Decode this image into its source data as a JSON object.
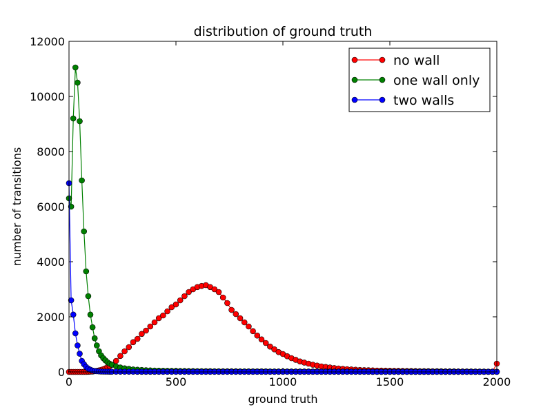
{
  "chart_data": {
    "type": "line",
    "title": "distribution of ground truth",
    "xlabel": "ground truth",
    "ylabel": "number of transitions",
    "x": [
      0,
      10,
      20,
      30,
      40,
      50,
      60,
      70,
      80,
      90,
      100,
      110,
      120,
      130,
      140,
      150,
      160,
      170,
      180,
      190,
      200,
      220,
      240,
      260,
      280,
      300,
      320,
      340,
      360,
      380,
      400,
      420,
      440,
      460,
      480,
      500,
      520,
      540,
      560,
      580,
      600,
      620,
      640,
      660,
      680,
      700,
      720,
      740,
      760,
      780,
      800,
      820,
      840,
      860,
      880,
      900,
      920,
      940,
      960,
      980,
      1000,
      1020,
      1040,
      1060,
      1080,
      1100,
      1120,
      1140,
      1160,
      1180,
      1200,
      1220,
      1240,
      1260,
      1280,
      1300,
      1320,
      1340,
      1360,
      1380,
      1400,
      1420,
      1440,
      1460,
      1480,
      1500,
      1520,
      1540,
      1560,
      1580,
      1600,
      1620,
      1640,
      1660,
      1680,
      1700,
      1720,
      1740,
      1760,
      1780,
      1800,
      1820,
      1840,
      1860,
      1880,
      1900,
      1920,
      1940,
      1960,
      1980,
      2000
    ],
    "series": [
      {
        "name": "no wall",
        "color": "#ff0000",
        "values": [
          0,
          0,
          0,
          0,
          0,
          0,
          0,
          0,
          0,
          5,
          10,
          15,
          25,
          40,
          55,
          75,
          100,
          130,
          170,
          210,
          260,
          400,
          580,
          750,
          900,
          1080,
          1200,
          1380,
          1500,
          1650,
          1800,
          1950,
          2050,
          2200,
          2350,
          2450,
          2600,
          2750,
          2900,
          3000,
          3080,
          3120,
          3150,
          3080,
          3000,
          2900,
          2700,
          2500,
          2250,
          2100,
          1950,
          1800,
          1650,
          1480,
          1320,
          1180,
          1050,
          920,
          820,
          720,
          650,
          570,
          500,
          440,
          380,
          340,
          300,
          260,
          230,
          200,
          180,
          160,
          140,
          125,
          110,
          100,
          90,
          80,
          70,
          65,
          60,
          55,
          50,
          48,
          45,
          42,
          40,
          38,
          36,
          34,
          32,
          30,
          28,
          27,
          26,
          25,
          24,
          23,
          22,
          21,
          20,
          19,
          18,
          17,
          16,
          15,
          14,
          13,
          12,
          11,
          300
        ]
      },
      {
        "name": "one wall only",
        "color": "#008000",
        "values": [
          6300,
          6000,
          9200,
          11050,
          10500,
          9100,
          6950,
          5100,
          3650,
          2750,
          2080,
          1620,
          1220,
          960,
          750,
          600,
          500,
          420,
          350,
          300,
          260,
          200,
          160,
          130,
          110,
          90,
          80,
          70,
          62,
          55,
          50,
          46,
          42,
          40,
          38,
          36,
          34,
          32,
          30,
          30,
          28,
          28,
          26,
          26,
          25,
          25,
          24,
          24,
          23,
          23,
          22,
          22,
          21,
          21,
          20,
          20,
          20,
          19,
          19,
          18,
          18,
          18,
          17,
          17,
          17,
          16,
          16,
          16,
          15,
          15,
          15,
          15,
          14,
          14,
          14,
          14,
          13,
          13,
          13,
          13,
          12,
          12,
          12,
          12,
          11,
          11,
          11,
          11,
          11,
          10,
          10,
          10,
          10,
          10,
          10,
          10,
          9,
          9,
          9,
          9,
          9,
          9,
          9,
          9,
          8,
          8,
          8,
          8,
          8,
          8,
          8
        ]
      },
      {
        "name": "two walls",
        "color": "#0000ff",
        "values": [
          6850,
          2600,
          2080,
          1400,
          960,
          660,
          400,
          280,
          180,
          120,
          80,
          50,
          35,
          25,
          20,
          15,
          12,
          10,
          10,
          8,
          8,
          7,
          7,
          6,
          6,
          6,
          5,
          5,
          5,
          5,
          5,
          4,
          4,
          4,
          4,
          4,
          4,
          4,
          4,
          4,
          4,
          4,
          4,
          4,
          4,
          4,
          4,
          4,
          4,
          4,
          4,
          3,
          3,
          3,
          3,
          3,
          3,
          3,
          3,
          3,
          3,
          3,
          3,
          3,
          3,
          3,
          3,
          3,
          3,
          3,
          3,
          3,
          3,
          3,
          3,
          3,
          3,
          3,
          3,
          3,
          3,
          2,
          2,
          2,
          2,
          2,
          2,
          2,
          2,
          2,
          2,
          2,
          2,
          2,
          2,
          2,
          2,
          2,
          2,
          2,
          2,
          2,
          2,
          2,
          2,
          2,
          2,
          2,
          2,
          2,
          2
        ]
      }
    ],
    "xlim": [
      0,
      2000
    ],
    "xticks": [
      0,
      500,
      1000,
      1500,
      2000
    ],
    "ylim": [
      0,
      12000
    ],
    "yticks": [
      0,
      2000,
      4000,
      6000,
      8000,
      10000,
      12000
    ],
    "grid": false,
    "legend": "upper right"
  }
}
